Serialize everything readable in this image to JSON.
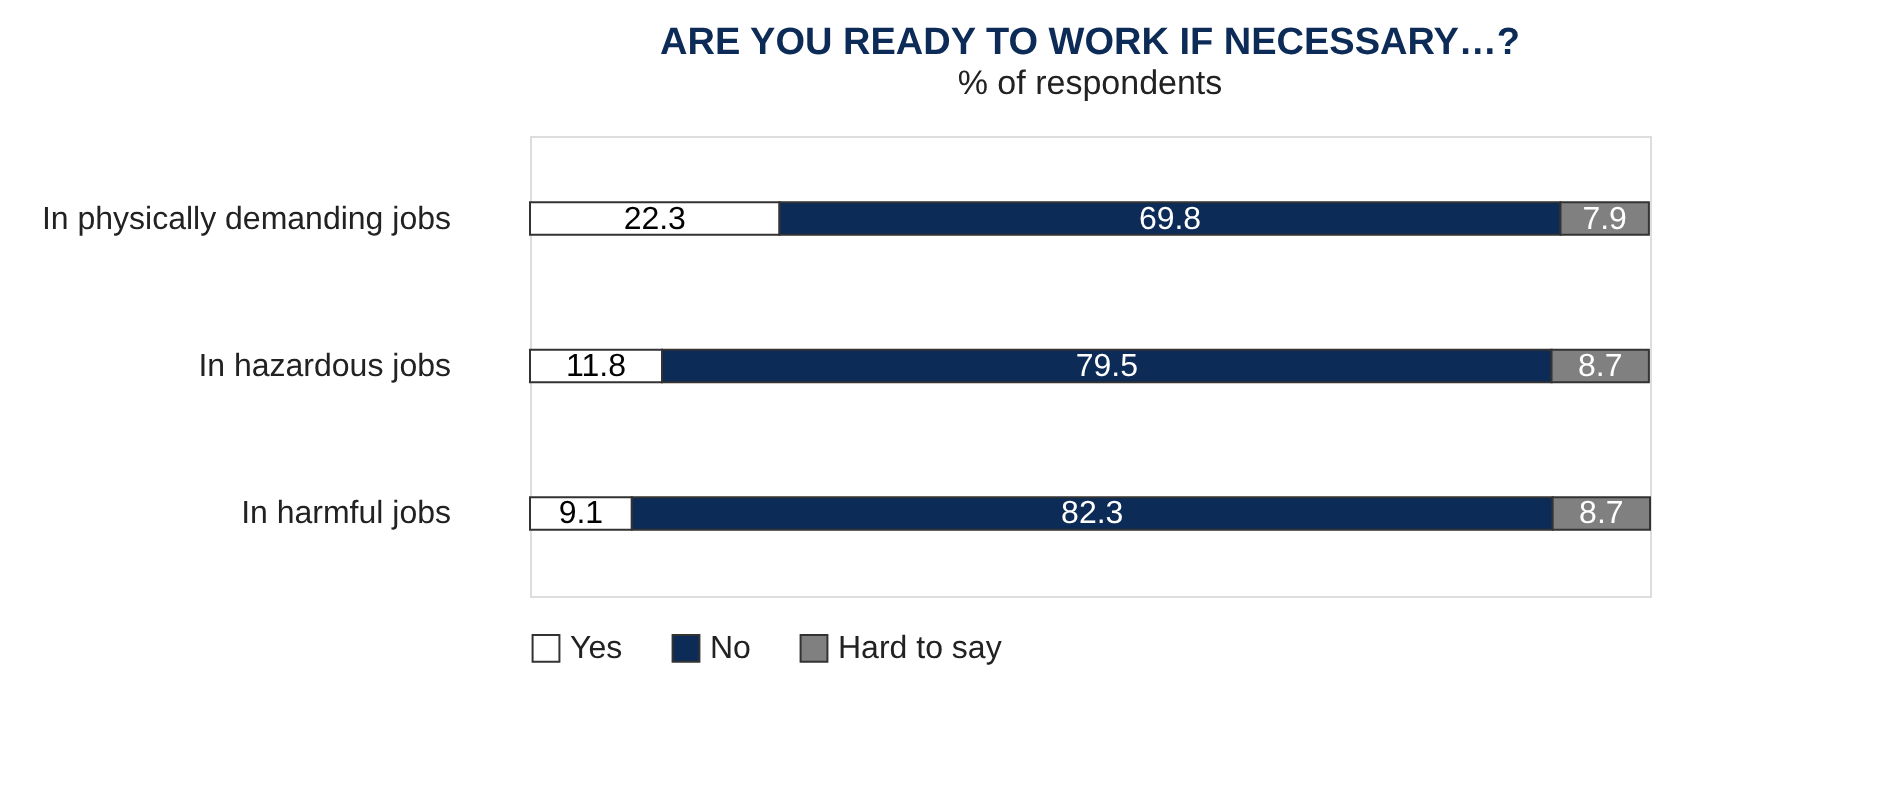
{
  "chart_data": {
    "type": "bar",
    "orientation": "horizontal",
    "stacked": true,
    "title": "ARE YOU READY TO WORK IF NECESSARY…?",
    "subtitle": "% of respondents",
    "categories": [
      "In physically demanding jobs",
      "In hazardous jobs",
      "In harmful jobs"
    ],
    "series": [
      {
        "name": "Yes",
        "color": "#ffffff",
        "values": [
          22.3,
          11.8,
          9.1
        ]
      },
      {
        "name": "No",
        "color": "#0d2b57",
        "values": [
          69.8,
          79.5,
          82.3
        ]
      },
      {
        "name": "Hard to say",
        "color": "#808080",
        "values": [
          7.9,
          8.7,
          8.7
        ]
      }
    ],
    "data_labels": true,
    "legend": "bottom"
  }
}
